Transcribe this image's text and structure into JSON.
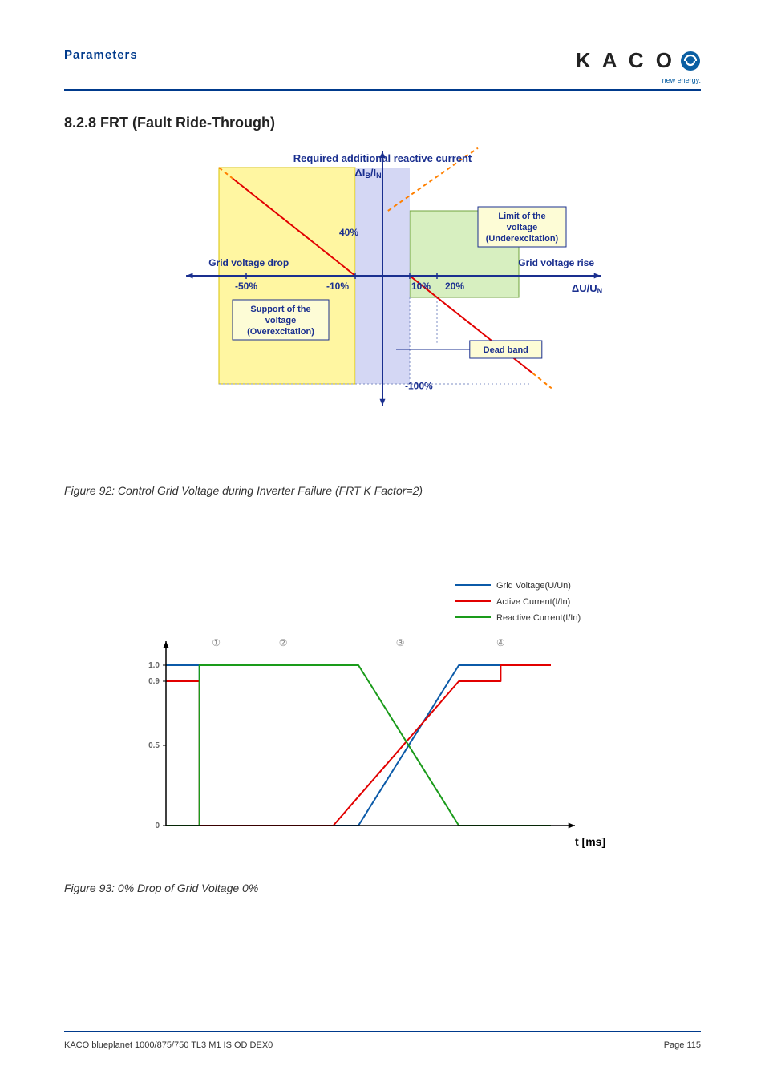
{
  "header": {
    "section_label": "Parameters",
    "logo_text": "K A C O",
    "logo_subtext": "new energy."
  },
  "heading": "8.2.8   FRT (Fault Ride-Through)",
  "figure92": {
    "caption": "Figure 92:  Control Grid Voltage during Inverter Failure (FRT K Factor=2)",
    "title": "Required additional reactive current",
    "y_axis_label": "ΔI_B/I_N",
    "x_left_label": "Grid voltage drop",
    "x_right_label": "Grid voltage rise",
    "x_axis_unit": "ΔU/U_N",
    "overex_box": "Support of the\nvoltage\n(Overexcitation)",
    "underex_box": "Limit of the\nvoltage\n(Underexcitation)",
    "deadband_box": "Dead band",
    "ticks": {
      "y_top": "40%",
      "y_bottom": "-100%",
      "x_neg50": "-50%",
      "x_neg10": "-10%",
      "x_pos10": "10%",
      "x_pos20": "20%"
    },
    "colors": {
      "axis": "#1a2f8f",
      "region_overex_fill": "#fff6a1",
      "region_overex_stroke": "#d9c300",
      "region_underex_fill": "#d7efc0",
      "region_underex_stroke": "#6fa33b",
      "deadband_fill": "#c6c9f0",
      "line_red": "#e20000",
      "line_red_dash": "#ff8000",
      "box_border": "#1a2f8f",
      "box_fill": "#fdfcd6",
      "text": "#1a2f8f",
      "grid_dot": "#7f8fc5"
    }
  },
  "figure93": {
    "caption": "Figure 93:  0% Drop of Grid Voltage 0%",
    "legend": {
      "grid_voltage": "Grid Voltage(U/Un)",
      "active_current": "Active Current(I/In)",
      "reactive_current": "Reactive Current(I/In)"
    },
    "x_axis_label": "t [ms]",
    "yticks": [
      "1.0",
      "0.9",
      "0.5",
      "0"
    ],
    "phase_markers": [
      "①",
      "②",
      "③",
      "④"
    ],
    "colors": {
      "axis": "#000000",
      "grid_voltage": "#0b5aa8",
      "active_current": "#e20000",
      "reactive_current": "#1a9b1a",
      "tick_text": "#666666",
      "phase_box": "#888888"
    },
    "series": {
      "grid_voltage": [
        [
          0,
          1.0
        ],
        [
          40,
          1.0
        ],
        [
          40,
          0.0
        ],
        [
          230,
          0.0
        ],
        [
          350,
          1.0
        ],
        [
          460,
          1.0
        ]
      ],
      "active_current": [
        [
          0,
          0.9
        ],
        [
          40,
          0.9
        ],
        [
          40,
          0.0
        ],
        [
          200,
          0.0
        ],
        [
          350,
          0.9
        ],
        [
          400,
          0.9
        ],
        [
          400,
          1.0
        ],
        [
          460,
          1.0
        ]
      ],
      "reactive_current": [
        [
          0,
          0.0
        ],
        [
          40,
          0.0
        ],
        [
          40,
          1.0
        ],
        [
          230,
          1.0
        ],
        [
          350,
          0.0
        ],
        [
          460,
          0.0
        ]
      ]
    }
  },
  "footer": {
    "left": "KACO blueplanet 1000/875/750 TL3 M1 IS OD DEX0",
    "right": "Page 115"
  }
}
